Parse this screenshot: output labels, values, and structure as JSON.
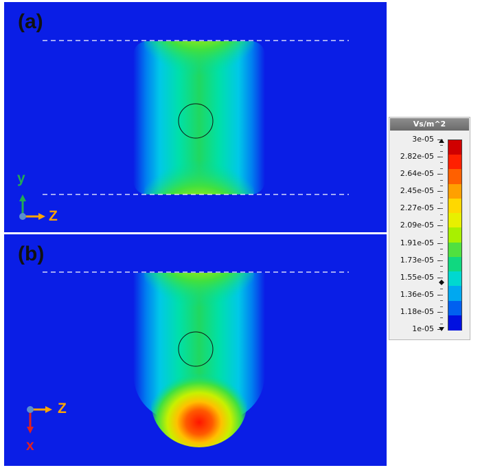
{
  "panels": [
    {
      "label": "(a)",
      "axis_vertical": "y",
      "axis_horizontal": "Z"
    },
    {
      "label": "(b)",
      "axis_vertical": "x",
      "axis_horizontal": "Z"
    }
  ],
  "legend": {
    "unit": "Vs/m^2",
    "ticks": [
      "3e-05",
      "2.82e-05",
      "2.64e-05",
      "2.45e-05",
      "2.27e-05",
      "2.09e-05",
      "1.91e-05",
      "1.73e-05",
      "1.55e-05",
      "1.36e-05",
      "1.18e-05",
      "1e-05"
    ],
    "min": 1e-05,
    "max": 3e-05
  },
  "colors": {
    "background": "#0a1ee6",
    "axis_y": "#22aa55",
    "axis_z": "#ffa500",
    "axis_x": "#e02020",
    "origin": "#5a8fd0"
  }
}
